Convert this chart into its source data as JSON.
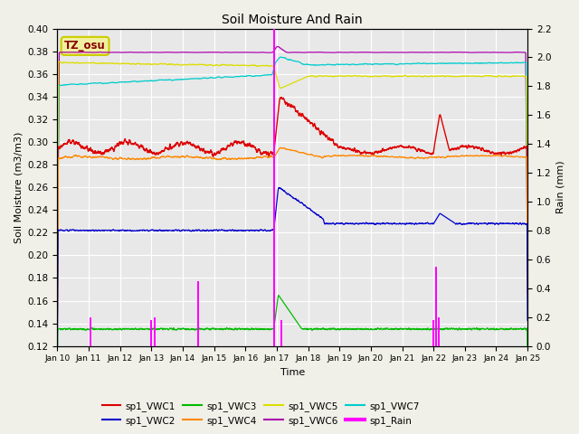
{
  "title": "Soil Moisture And Rain",
  "xlabel": "Time",
  "ylabel_left": "Soil Moisture (m3/m3)",
  "ylabel_right": "Rain (mm)",
  "annotation": "TZ_osu",
  "ylim_left": [
    0.12,
    0.4
  ],
  "ylim_right": [
    0.0,
    2.2
  ],
  "yticks_left": [
    0.12,
    0.14,
    0.16,
    0.18,
    0.2,
    0.22,
    0.24,
    0.26,
    0.28,
    0.3,
    0.32,
    0.34,
    0.36,
    0.38,
    0.4
  ],
  "yticks_right": [
    0.0,
    0.2,
    0.4,
    0.6,
    0.8,
    1.0,
    1.2,
    1.4,
    1.6,
    1.8,
    2.0,
    2.2
  ],
  "date_start": 10,
  "date_end": 25,
  "colors": {
    "sp1_VWC1": "#dd0000",
    "sp1_VWC2": "#0000cc",
    "sp1_VWC3": "#00bb00",
    "sp1_VWC4": "#ff8800",
    "sp1_VWC5": "#dddd00",
    "sp1_VWC6": "#aa00aa",
    "sp1_VWC7": "#00cccc",
    "sp1_Rain": "#ff00ff"
  },
  "bg_color": "#e8e8e8",
  "fig_bg": "#f0f0e8"
}
